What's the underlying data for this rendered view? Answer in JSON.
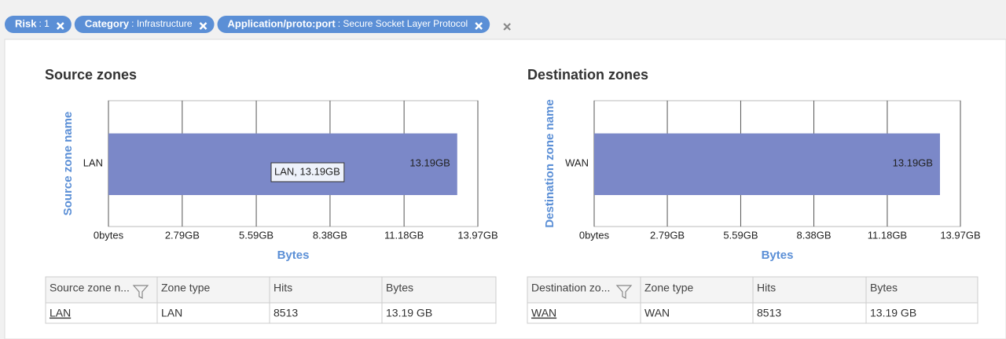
{
  "filters": [
    {
      "key": "Risk",
      "value": ": 1"
    },
    {
      "key": "Category",
      "value": ": Infrastructure"
    },
    {
      "key": "Application/proto:port",
      "value": ": Secure Socket Layer Protocol"
    }
  ],
  "chart_data": [
    {
      "type": "bar",
      "orientation": "horizontal",
      "title": "Source zones",
      "ylabel": "Source zone name",
      "xlabel": "Bytes",
      "categories": [
        "LAN"
      ],
      "values": [
        13.19
      ],
      "value_labels": [
        "13.19GB"
      ],
      "color": "#7b88c8",
      "tooltip": "LAN, 13.19GB",
      "xlim": [
        0,
        13.97
      ],
      "xticks": [
        {
          "value": 0,
          "label": "0bytes"
        },
        {
          "value": 2.79,
          "label": "2.79GB"
        },
        {
          "value": 5.59,
          "label": "5.59GB"
        },
        {
          "value": 8.38,
          "label": "8.38GB"
        },
        {
          "value": 11.18,
          "label": "11.18GB"
        },
        {
          "value": 13.97,
          "label": "13.97GB"
        }
      ],
      "grid": true
    },
    {
      "type": "bar",
      "orientation": "horizontal",
      "title": "Destination zones",
      "ylabel": "Destination zone name",
      "xlabel": "Bytes",
      "categories": [
        "WAN"
      ],
      "values": [
        13.19
      ],
      "value_labels": [
        "13.19GB"
      ],
      "color": "#7b88c8",
      "xlim": [
        0,
        13.97
      ],
      "xticks": [
        {
          "value": 0,
          "label": "0bytes"
        },
        {
          "value": 2.79,
          "label": "2.79GB"
        },
        {
          "value": 5.59,
          "label": "5.59GB"
        },
        {
          "value": 8.38,
          "label": "8.38GB"
        },
        {
          "value": 11.18,
          "label": "11.18GB"
        },
        {
          "value": 13.97,
          "label": "13.97GB"
        }
      ],
      "grid": true
    }
  ],
  "tables": [
    {
      "headers": [
        "Source zone n...",
        "Zone type",
        "Hits",
        "Bytes"
      ],
      "rows": [
        [
          "LAN",
          "LAN",
          "8513",
          "13.19 GB"
        ]
      ]
    },
    {
      "headers": [
        "Destination zo...",
        "Zone type",
        "Hits",
        "Bytes"
      ],
      "rows": [
        [
          "WAN",
          "WAN",
          "8513",
          "13.19 GB"
        ]
      ]
    }
  ]
}
